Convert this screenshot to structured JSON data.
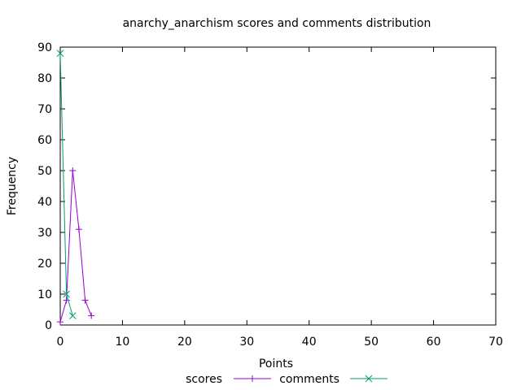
{
  "chart_data": {
    "type": "line",
    "title": "anarchy_anarchism scores and comments distribution",
    "xlabel": "Points",
    "ylabel": "Frequency",
    "xlim": [
      0,
      70
    ],
    "ylim": [
      0,
      90
    ],
    "xticks": [
      0,
      10,
      20,
      30,
      40,
      50,
      60,
      70
    ],
    "yticks": [
      0,
      10,
      20,
      30,
      40,
      50,
      60,
      70,
      80,
      90
    ],
    "grid": false,
    "legend_position": "bottom",
    "series": [
      {
        "name": "scores",
        "color": "#9400d3",
        "marker": "plus",
        "x": [
          0,
          1,
          2,
          3,
          4,
          5
        ],
        "y": [
          1,
          8,
          50,
          31,
          8,
          3
        ]
      },
      {
        "name": "comments",
        "color": "#009e73",
        "marker": "cross",
        "x": [
          0,
          1,
          2
        ],
        "y": [
          88,
          10,
          3
        ]
      }
    ]
  }
}
